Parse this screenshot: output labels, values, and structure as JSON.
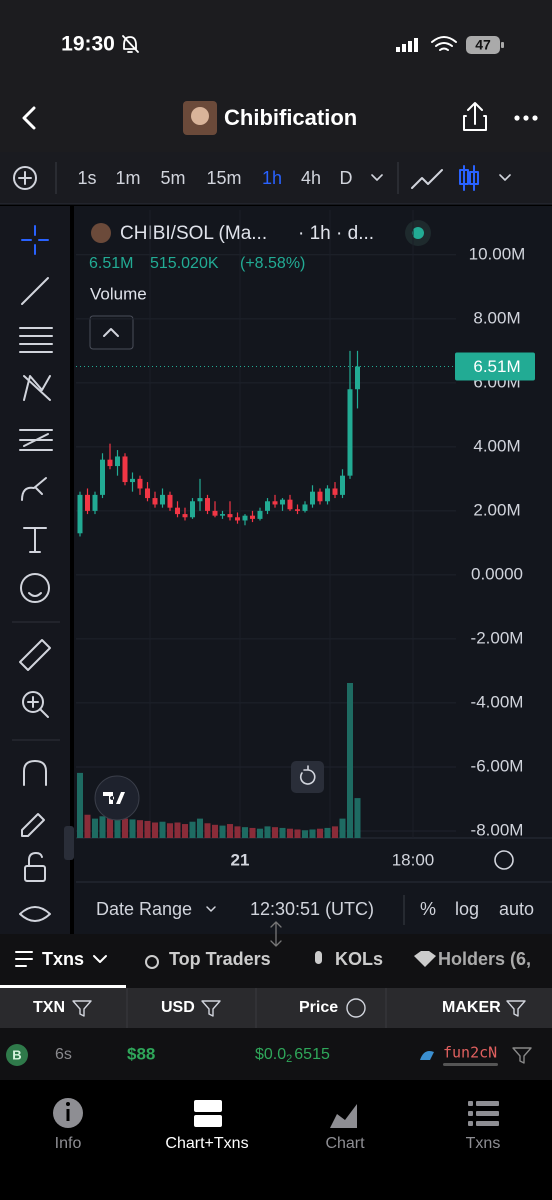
{
  "status_bar": {
    "time": "19:30",
    "battery": "47"
  },
  "header": {
    "title": "Chibification"
  },
  "timeframes": {
    "options": [
      "1s",
      "1m",
      "5m",
      "15m",
      "1h",
      "4h",
      "D"
    ],
    "active_index": 4
  },
  "chart": {
    "type": "candlestick",
    "symbol": "CHIBI/SOL (Ma...",
    "interval": "· 1h · d...",
    "price_text": "6.51M",
    "volume_text": "515.020K",
    "change_text": "(+8.58%)",
    "volume_label": "Volume",
    "ylim": [
      -8220000,
      11400000
    ],
    "yticks": [
      {
        "value": 10000000,
        "label": "10.00M"
      },
      {
        "value": 8000000,
        "label": "8.00M"
      },
      {
        "value": 6000000,
        "label": "6.00M"
      },
      {
        "value": 4000000,
        "label": "4.00M"
      },
      {
        "value": 2000000,
        "label": "2.00M"
      },
      {
        "value": 0,
        "label": "0.0000"
      },
      {
        "value": -2000000,
        "label": "-2.00M"
      },
      {
        "value": -4000000,
        "label": "-4.00M"
      },
      {
        "value": -6000000,
        "label": "-6.00M"
      },
      {
        "value": -8000000,
        "label": "-8.00M"
      }
    ],
    "grid": true,
    "x_labels": [
      "21",
      "18:00"
    ],
    "last_price": {
      "value": 6510000,
      "label": "6.51M"
    },
    "up_color": "#22ab94",
    "down_color": "#f23645",
    "volume_up_color": "#1e6b62",
    "volume_down_color": "#8a2c39",
    "open": [
      1300000,
      2500000,
      2000000,
      2500000,
      3600000,
      3400000,
      3700000,
      2900000,
      3000000,
      2700000,
      2400000,
      2200000,
      2500000,
      2100000,
      1900000,
      1800000,
      2300000,
      2400000,
      2000000,
      1850000,
      1900000,
      1800000,
      1700000,
      1850000,
      1750000,
      2000000,
      2300000,
      2200000,
      2350000,
      2050000,
      2000000,
      2200000,
      2600000,
      2300000,
      2700000,
      2500000,
      3100000,
      5800000
    ],
    "high": [
      2600000,
      2700000,
      2600000,
      3800000,
      4100000,
      3900000,
      3800000,
      3200000,
      3100000,
      2900000,
      2600000,
      2700000,
      2600000,
      2300000,
      2100000,
      2400000,
      3000000,
      2500000,
      2300000,
      2000000,
      2300000,
      1950000,
      1900000,
      2000000,
      2100000,
      2400000,
      2500000,
      2400000,
      2500000,
      2200000,
      2300000,
      2800000,
      2700000,
      2800000,
      2900000,
      3300000,
      7000000,
      7000000
    ],
    "low": [
      1200000,
      1900000,
      1900000,
      2400000,
      3300000,
      3100000,
      2800000,
      2600000,
      2500000,
      2300000,
      2100000,
      2100000,
      2000000,
      1800000,
      1700000,
      1750000,
      2000000,
      1900000,
      1800000,
      1750000,
      1700000,
      1600000,
      1550000,
      1650000,
      1700000,
      1900000,
      2100000,
      2000000,
      2000000,
      1900000,
      1950000,
      2100000,
      2200000,
      2200000,
      2400000,
      2400000,
      3000000,
      5200000
    ],
    "close": [
      2500000,
      2000000,
      2500000,
      3600000,
      3400000,
      3700000,
      2900000,
      3000000,
      2700000,
      2400000,
      2200000,
      2500000,
      2100000,
      1900000,
      1800000,
      2300000,
      2400000,
      2000000,
      1850000,
      1900000,
      1800000,
      1700000,
      1850000,
      1750000,
      2000000,
      2300000,
      2200000,
      2350000,
      2050000,
      2000000,
      2200000,
      2600000,
      2300000,
      2700000,
      2500000,
      3100000,
      5800000,
      6510000
    ],
    "volume": [
      840000,
      300000,
      250000,
      280000,
      320000,
      260000,
      250000,
      240000,
      230000,
      220000,
      200000,
      210000,
      190000,
      200000,
      180000,
      210000,
      250000,
      190000,
      170000,
      160000,
      180000,
      150000,
      140000,
      130000,
      120000,
      150000,
      140000,
      130000,
      120000,
      110000,
      100000,
      110000,
      120000,
      130000,
      150000,
      250000,
      2000000,
      515020
    ]
  },
  "chart_footer": {
    "date_range": "Date Range",
    "time": "12:30:51 (UTC)",
    "options": [
      "%",
      "log",
      "auto"
    ]
  },
  "tabs": [
    "Txns",
    "Top Traders",
    "KOLs",
    "Holders (6,"
  ],
  "table": {
    "columns": [
      "TXN",
      "USD",
      "Price",
      "MAKER"
    ],
    "rows": [
      {
        "type": "B",
        "age": "6s",
        "usd": "$88",
        "price_prefix": "$0.0",
        "price_zeros": "2",
        "price_digits": "6515",
        "maker": "fun2cN"
      }
    ]
  },
  "nav": [
    "Info",
    "Chart+Txns",
    "Chart",
    "Txns"
  ],
  "nav_active": 1
}
